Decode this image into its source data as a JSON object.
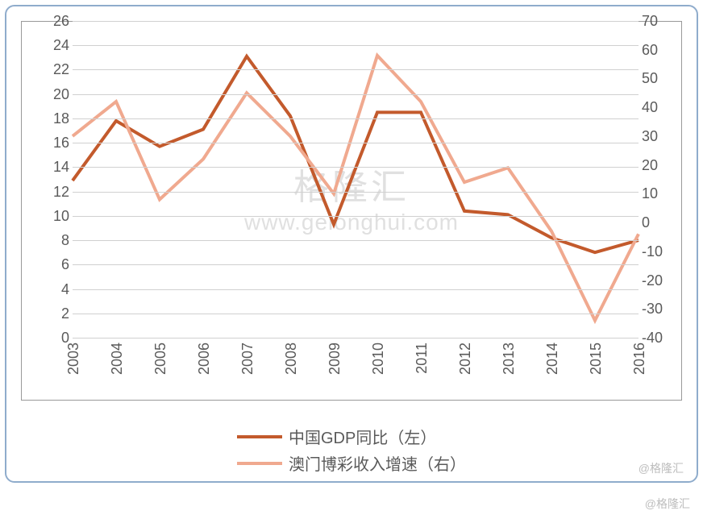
{
  "chart": {
    "type": "line-dual-axis",
    "categories": [
      "2003",
      "2004",
      "2005",
      "2006",
      "2007",
      "2008",
      "2009",
      "2010",
      "2011",
      "2012",
      "2013",
      "2014",
      "2015",
      "2016"
    ],
    "series": [
      {
        "name_key": "legend1",
        "axis": "left",
        "color": "#c35a2c",
        "line_width": 4,
        "values": [
          12.9,
          17.8,
          15.7,
          17.1,
          23.1,
          18.2,
          9.3,
          18.5,
          18.5,
          10.4,
          10.1,
          8.2,
          7.0,
          8.0
        ]
      },
      {
        "name_key": "legend2",
        "axis": "right",
        "color": "#f0a98f",
        "line_width": 4,
        "values": [
          30,
          42,
          8,
          22,
          45,
          30,
          10,
          58,
          42,
          14,
          19,
          -3,
          -34,
          -4
        ]
      }
    ],
    "left_axis": {
      "min": 0,
      "max": 26,
      "step": 2,
      "label_fontsize": 18,
      "label_color": "#5a5a5a"
    },
    "right_axis": {
      "min": -40,
      "max": 70,
      "step": 10,
      "label_fontsize": 18,
      "label_color": "#5a5a5a"
    },
    "grid_color": "#d0d0d0",
    "background_color": "#ffffff",
    "frame_border_color": "#8faccc",
    "inner_border_color": "#999999"
  },
  "legend1": "中国GDP同比（左）",
  "legend2": "澳门博彩收入增速（右）",
  "watermark_top": "格隆汇",
  "watermark_bottom": "www.gelonghui.com",
  "attribution": "@格隆汇"
}
